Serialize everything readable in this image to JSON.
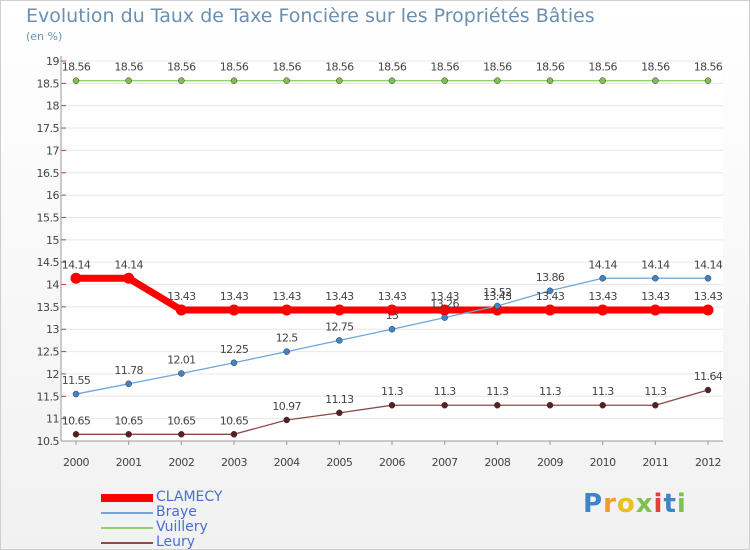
{
  "title": "Evolution du Taux de Taxe Foncière sur les Propriétés Bâties",
  "subtitle": "(en %)",
  "logo_text": "Proxiti",
  "chart_data": {
    "type": "line",
    "title": "Evolution du Taux de Taxe Foncière sur les Propriétés Bâties",
    "ylabel": "(en %)",
    "xlabel": "",
    "ylim": [
      10.5,
      19
    ],
    "y_ticks": [
      "10.5",
      "11",
      "11.5",
      "12",
      "12.5",
      "13",
      "13.5",
      "14",
      "14.5",
      "15",
      "15.5",
      "16",
      "16.5",
      "17",
      "17.5",
      "18",
      "18.5",
      "19"
    ],
    "categories": [
      "2000",
      "2001",
      "2002",
      "2003",
      "2004",
      "2005",
      "2006",
      "2007",
      "2008",
      "2009",
      "2010",
      "2011",
      "2012"
    ],
    "series": [
      {
        "name": "CLAMECY",
        "color": "#ff0000",
        "marker_color": "#ff0000",
        "values": [
          14.14,
          14.14,
          13.43,
          13.43,
          13.43,
          13.43,
          13.43,
          13.43,
          13.43,
          13.43,
          13.43,
          13.43,
          13.43
        ],
        "labels": [
          "14.14",
          "14.14",
          "13.43",
          "13.43",
          "13.43",
          "13.43",
          "13.43",
          "13.43",
          "13.43",
          "13.43",
          "13.43",
          "13.43",
          "13.43"
        ]
      },
      {
        "name": "Braye",
        "color": "#6ea6d8",
        "marker_color": "#3f83c8",
        "values": [
          11.55,
          11.78,
          12.01,
          12.25,
          12.5,
          12.75,
          13.0,
          13.26,
          13.52,
          13.86,
          14.14,
          14.14,
          14.14
        ],
        "labels": [
          "11.55",
          "11.78",
          "12.01",
          "12.25",
          "12.5",
          "12.75",
          "13",
          "13.26",
          "13.52",
          "13.86",
          "14.14",
          "14.14",
          "14.14"
        ]
      },
      {
        "name": "Vuillery",
        "color": "#8fd36a",
        "marker_color": "#7dc24f",
        "values": [
          18.56,
          18.56,
          18.56,
          18.56,
          18.56,
          18.56,
          18.56,
          18.56,
          18.56,
          18.56,
          18.56,
          18.56,
          18.56
        ],
        "labels": [
          "18.56",
          "18.56",
          "18.56",
          "18.56",
          "18.56",
          "18.56",
          "18.56",
          "18.56",
          "18.56",
          "18.56",
          "18.56",
          "18.56",
          "18.56"
        ]
      },
      {
        "name": "Leury",
        "color": "#8a4a4a",
        "marker_color": "#5a1f1f",
        "values": [
          10.65,
          10.65,
          10.65,
          10.65,
          10.97,
          11.13,
          11.3,
          11.3,
          11.3,
          11.3,
          11.3,
          11.3,
          11.64
        ],
        "labels": [
          "10.65",
          "10.65",
          "10.65",
          "10.65",
          "10.97",
          "11.13",
          "11.3",
          "11.3",
          "11.3",
          "11.3",
          "11.3",
          "11.3",
          "11.64"
        ]
      }
    ]
  }
}
